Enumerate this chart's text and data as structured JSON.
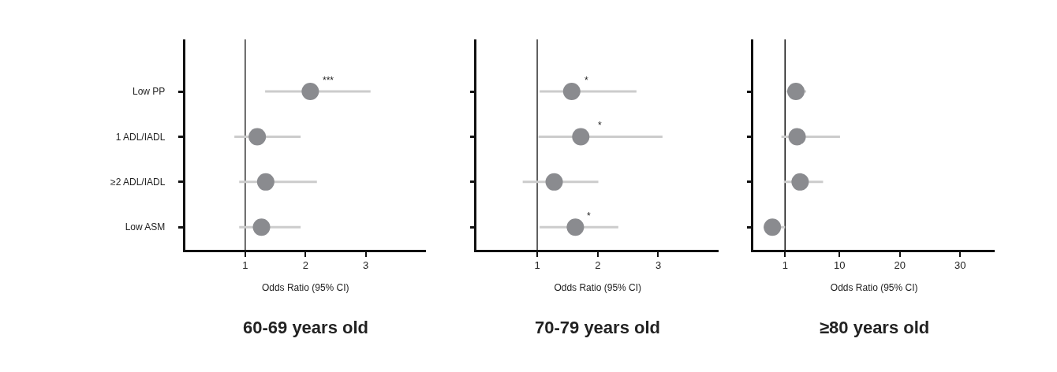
{
  "chart_data": [
    {
      "type": "scatter",
      "orientation": "horizontal",
      "title": "60-69 years old",
      "xlabel": "Odds Ratio (95% CI)",
      "categories": [
        "Low PP",
        "1 ADL/IADL",
        "≥2 ADL/IADL",
        "Low ASM"
      ],
      "values": [
        2.08,
        1.2,
        1.34,
        1.27
      ],
      "errors": [
        [
          1.33,
          3.08
        ],
        [
          0.82,
          1.92
        ],
        [
          0.9,
          2.19
        ],
        [
          0.9,
          1.92
        ]
      ],
      "color": "#8a8b8f",
      "marker": "circle",
      "xlim": [
        0,
        4
      ],
      "xticks": [
        1,
        2,
        3
      ],
      "ref_lines": [
        {
          "axis": "x",
          "value": 1,
          "color": "#333333"
        }
      ],
      "annotations": [
        {
          "text": "***",
          "x": 2.37,
          "y": "Low PP"
        }
      ],
      "grid": false,
      "legend": false
    },
    {
      "type": "scatter",
      "orientation": "horizontal",
      "title": "70-79 years old",
      "xlabel": "Odds Ratio (95% CI)",
      "categories": [
        "Low PP",
        "1 ADL/IADL",
        "≥2 ADL/IADL",
        "Low ASM"
      ],
      "values": [
        1.57,
        1.72,
        1.28,
        1.63
      ],
      "errors": [
        [
          1.04,
          2.64
        ],
        [
          1.02,
          3.07
        ],
        [
          0.76,
          2.01
        ],
        [
          1.04,
          2.34
        ]
      ],
      "color": "#8a8b8f",
      "marker": "circle",
      "xlim": [
        0,
        4
      ],
      "xticks": [
        1,
        2,
        3
      ],
      "ref_lines": [
        {
          "axis": "x",
          "value": 1,
          "color": "#333333"
        }
      ],
      "annotations": [
        {
          "text": "*",
          "x": 1.81,
          "y": "Low PP"
        },
        {
          "text": "*",
          "x": 2.04,
          "y": "1 ADL/IADL"
        },
        {
          "text": "*",
          "x": 1.85,
          "y": "Low ASM"
        }
      ],
      "tick_labels": "x",
      "grid": false,
      "legend": false
    },
    {
      "type": "scatter",
      "orientation": "horizontal",
      "title": "≥80 years old",
      "xlabel": "Odds Ratio (95% CI)",
      "categories": [
        "Low PP",
        "1 ADL/IADL",
        "≥2 ADL/IADL",
        "Low ASM"
      ],
      "values": [
        2.8,
        3.0,
        3.5,
        -1.1
      ],
      "errors": [
        [
          1.2,
          4.5
        ],
        [
          0.4,
          10.1
        ],
        [
          0.8,
          7.3
        ],
        [
          -2.5,
          1.0
        ]
      ],
      "color": "#8a8b8f",
      "marker": "circle",
      "xlim": [
        -4.2,
        35.7
      ],
      "xticks": [
        1,
        10,
        20,
        30
      ],
      "ref_lines": [
        {
          "axis": "x",
          "value": 1,
          "color": "#111111"
        }
      ],
      "tick_labels": "x",
      "grid": false,
      "legend": false
    }
  ]
}
